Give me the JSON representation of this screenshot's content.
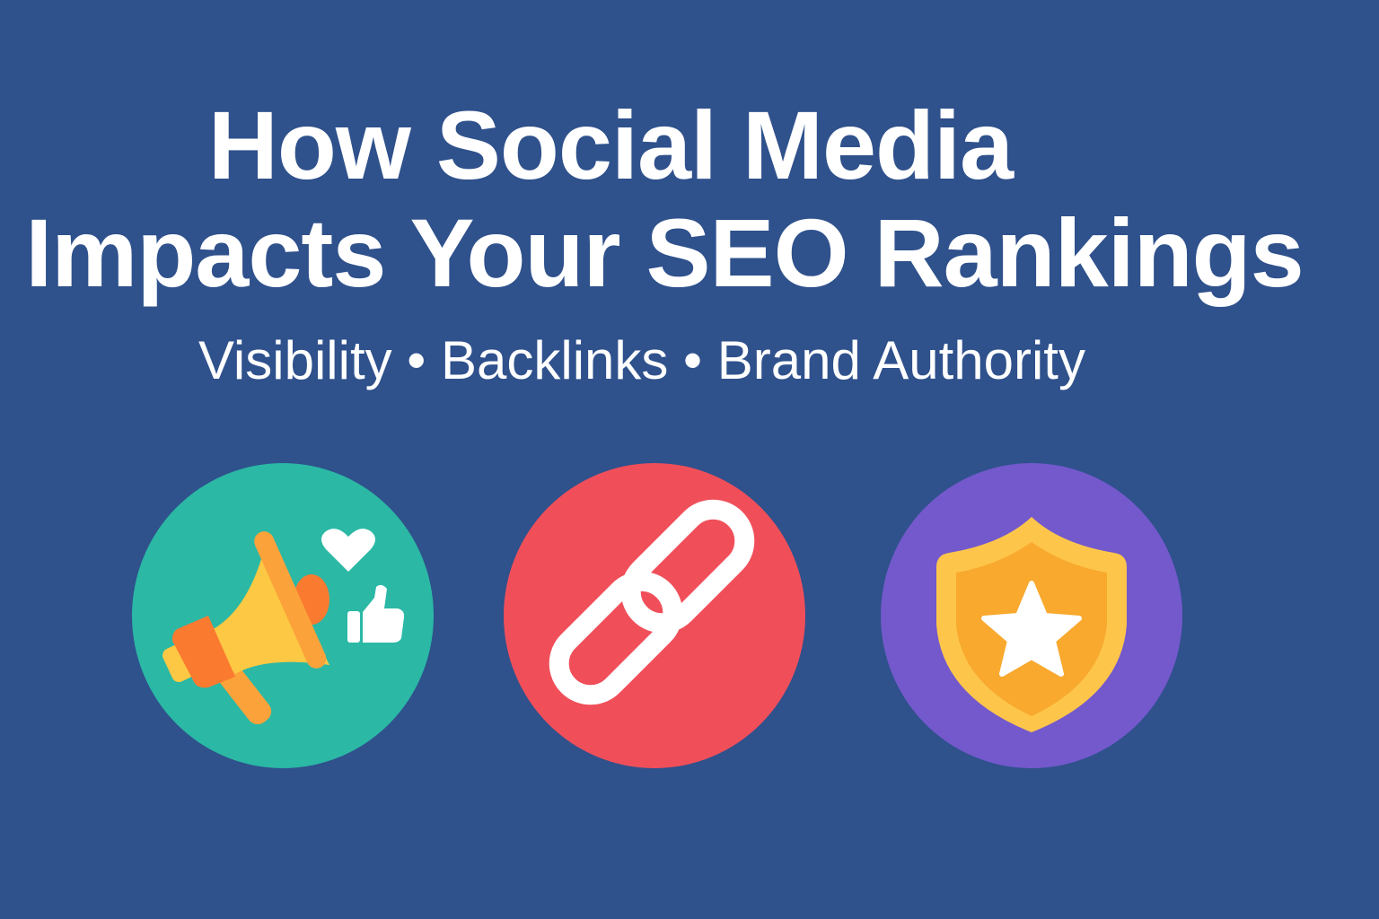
{
  "title": {
    "line1": "How Social Media",
    "line2": "Impacts Your SEO Rankings"
  },
  "subtitle": "Visibility • Backlinks • Brand Authority",
  "icons": [
    {
      "name": "megaphone-icon",
      "extras": [
        "heart-icon",
        "thumbs-up-icon"
      ],
      "circle_color": "#2bb8a5"
    },
    {
      "name": "chain-link-icon",
      "circle_color": "#f04f5a"
    },
    {
      "name": "shield-star-icon",
      "circle_color": "#7359cc"
    }
  ],
  "colors": {
    "background": "#2f518c",
    "text": "#ffffff"
  }
}
